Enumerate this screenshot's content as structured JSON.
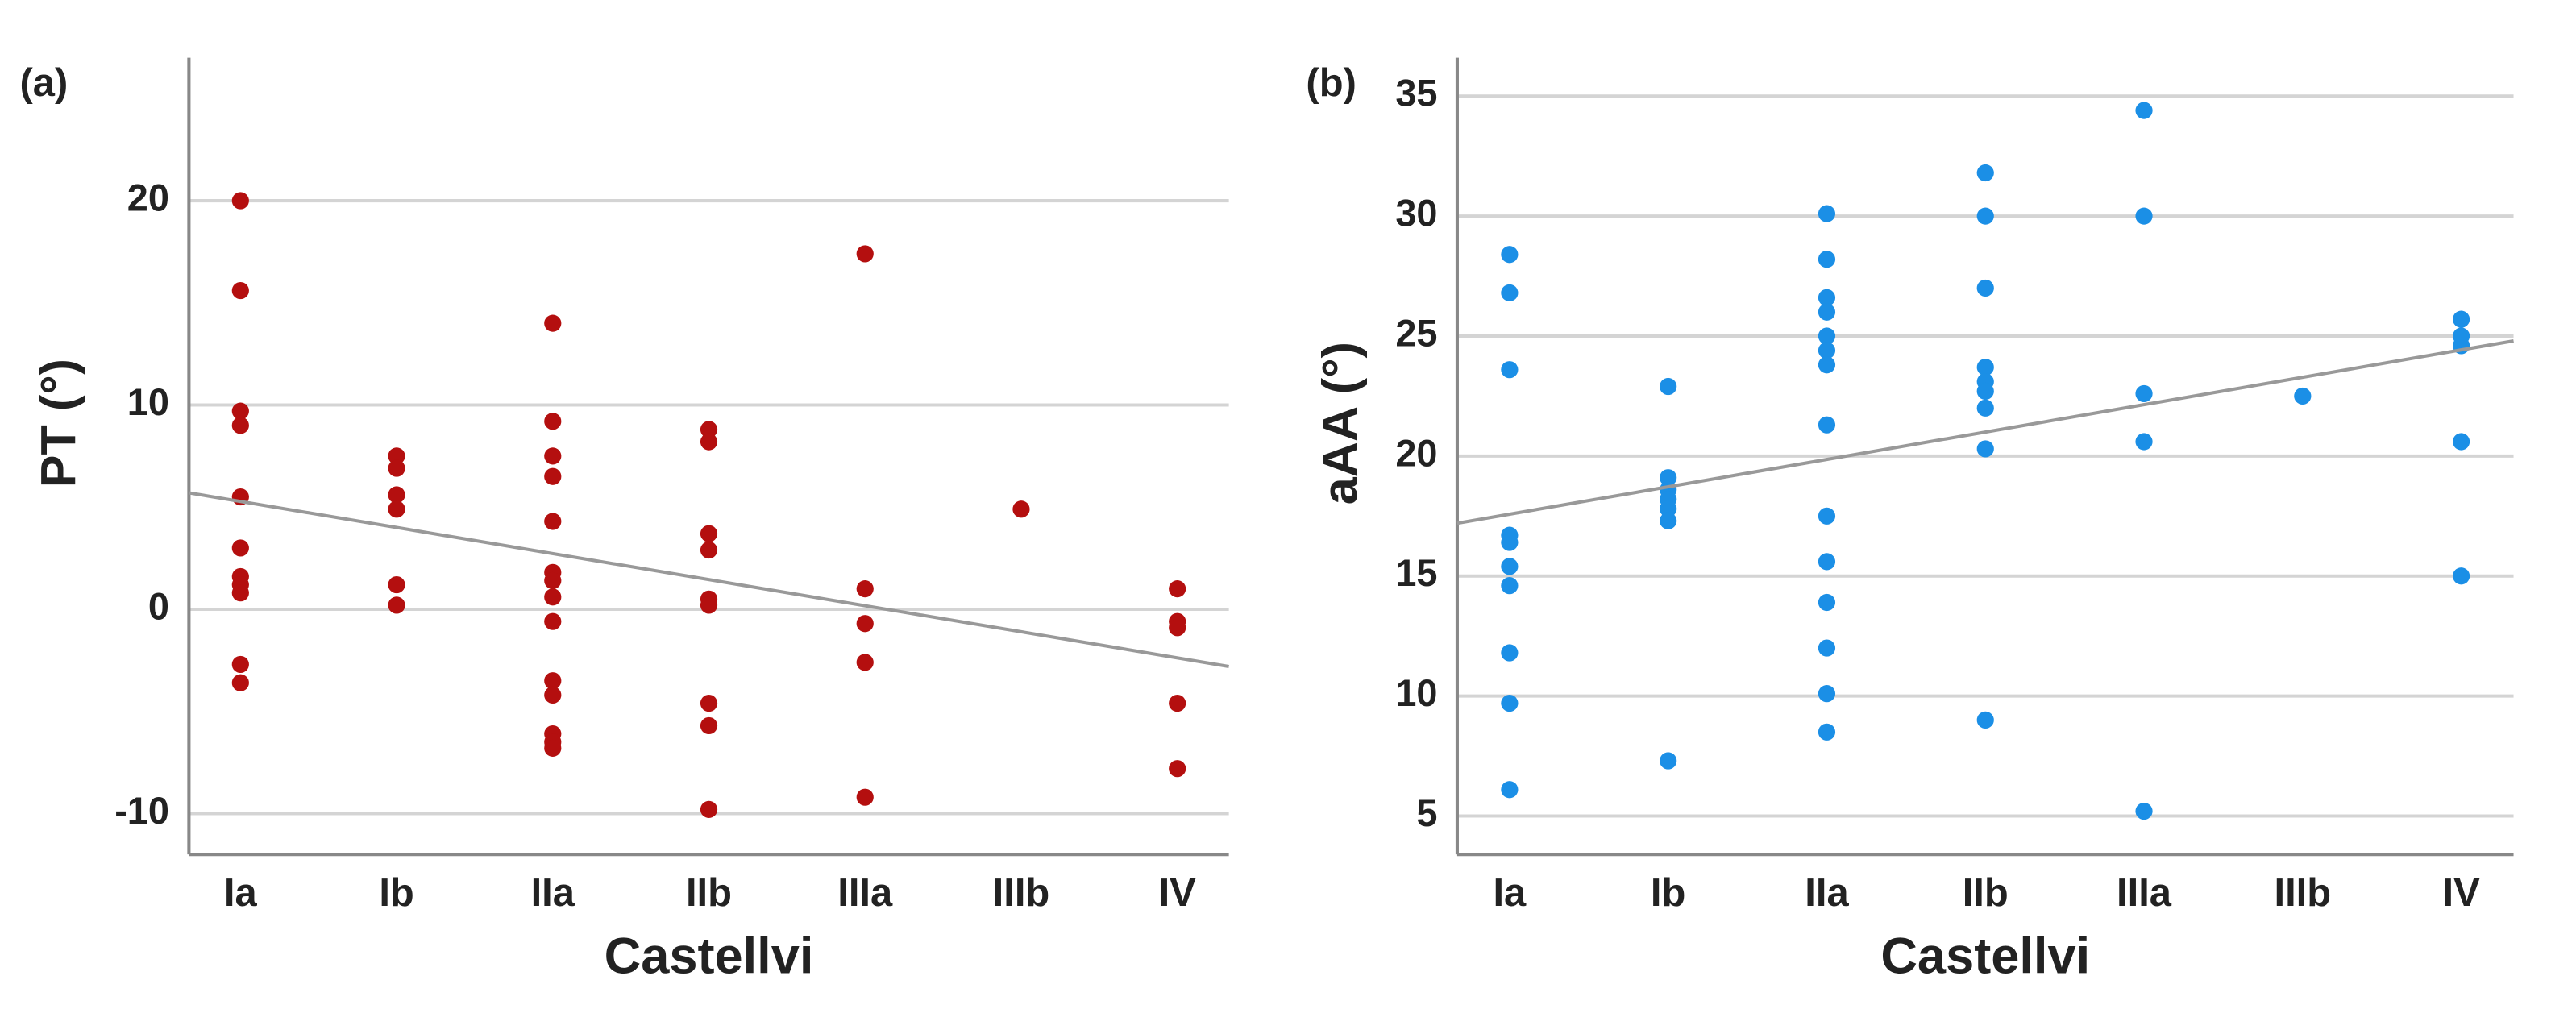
{
  "chart_data": [
    {
      "type": "scatter",
      "label": "(a)",
      "xlabel": "Castellvi",
      "ylabel": "PT (°)",
      "categories": [
        "Ia",
        "Ib",
        "IIa",
        "IIb",
        "IIIa",
        "IIIb",
        "IV"
      ],
      "values": [
        [
          20.0,
          15.6,
          9.7,
          9.0,
          5.5,
          3.0,
          1.6,
          1.2,
          0.8,
          -2.7,
          -3.6
        ],
        [
          7.5,
          6.9,
          5.6,
          4.9,
          1.2,
          0.2
        ],
        [
          14.0,
          9.2,
          7.5,
          6.5,
          4.3,
          1.8,
          1.4,
          0.6,
          -0.6,
          -3.5,
          -4.2,
          -6.1,
          -6.5,
          -6.8
        ],
        [
          8.8,
          8.2,
          3.7,
          2.9,
          0.5,
          0.2,
          -4.6,
          -5.7,
          -9.8
        ],
        [
          17.4,
          1.0,
          -0.7,
          -2.6,
          -9.2
        ],
        [
          4.9
        ],
        [
          1.0,
          -0.6,
          -0.9,
          -4.6,
          -7.8
        ]
      ],
      "color": "#b40f0f",
      "fit_line": [
        5.7,
        -2.8
      ],
      "fit_color": "#999999",
      "xlim": [
        -0.33,
        6.33
      ],
      "ylim": [
        -12,
        27
      ],
      "yticks": [
        -10,
        0,
        10,
        20
      ],
      "grid": true
    },
    {
      "type": "scatter",
      "label": "(b)",
      "xlabel": "Castellvi",
      "ylabel": "aAA (°)",
      "categories": [
        "Ia",
        "Ib",
        "IIa",
        "IIb",
        "IIIa",
        "IIIb",
        "IV"
      ],
      "values": [
        [
          28.4,
          26.8,
          23.6,
          16.7,
          16.4,
          15.4,
          14.6,
          11.8,
          9.7,
          6.1
        ],
        [
          22.9,
          19.1,
          18.6,
          18.2,
          17.8,
          17.3,
          7.3
        ],
        [
          30.1,
          28.2,
          26.6,
          26.0,
          25.0,
          24.4,
          23.8,
          21.3,
          17.5,
          15.6,
          13.9,
          12.0,
          10.1,
          8.5
        ],
        [
          31.8,
          30.0,
          27.0,
          23.7,
          23.1,
          22.7,
          22.0,
          20.3,
          9.0
        ],
        [
          34.4,
          30.0,
          22.6,
          20.6,
          5.2
        ],
        [
          22.5
        ],
        [
          25.7,
          25.0,
          24.6,
          20.6,
          15.0
        ]
      ],
      "color": "#1b8fe6",
      "fit_line": [
        17.2,
        24.8
      ],
      "fit_color": "#999999",
      "xlim": [
        -0.33,
        6.33
      ],
      "ylim": [
        3.4,
        36.6
      ],
      "yticks": [
        5,
        10,
        15,
        20,
        25,
        30,
        35
      ],
      "grid": true
    }
  ]
}
